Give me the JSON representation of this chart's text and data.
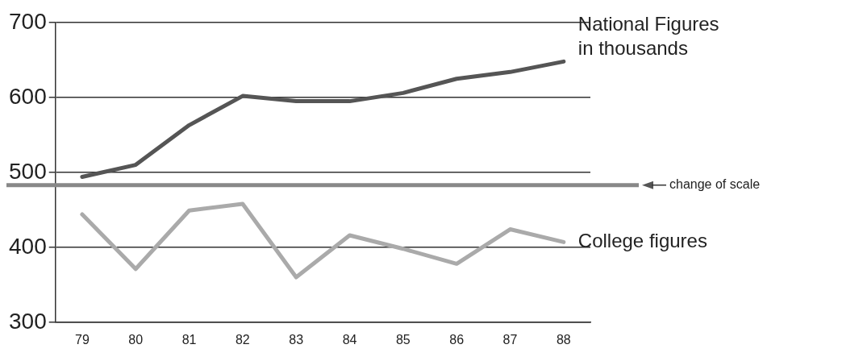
{
  "chart_data": {
    "type": "line",
    "categories": [
      "79",
      "80",
      "81",
      "82",
      "83",
      "84",
      "85",
      "86",
      "87",
      "88"
    ],
    "series": [
      {
        "name": "National Figures in thousands",
        "color": "#555555",
        "values": [
          494,
          510,
          563,
          602,
          595,
          595,
          606,
          625,
          634,
          648
        ]
      },
      {
        "name": "College figures",
        "color": "#aaaaaa",
        "values": [
          444,
          371,
          449,
          458,
          360,
          416,
          398,
          378,
          424,
          407
        ]
      }
    ],
    "ylim": [
      300,
      700
    ],
    "yticks": [
      300,
      400,
      500,
      600,
      700
    ],
    "grid": "y",
    "legend": false,
    "marker": "none",
    "line_style": "solid",
    "ref_lines": [
      {
        "axis": "y",
        "value": 483,
        "label": "change of scale",
        "color": "#888888"
      }
    ]
  }
}
